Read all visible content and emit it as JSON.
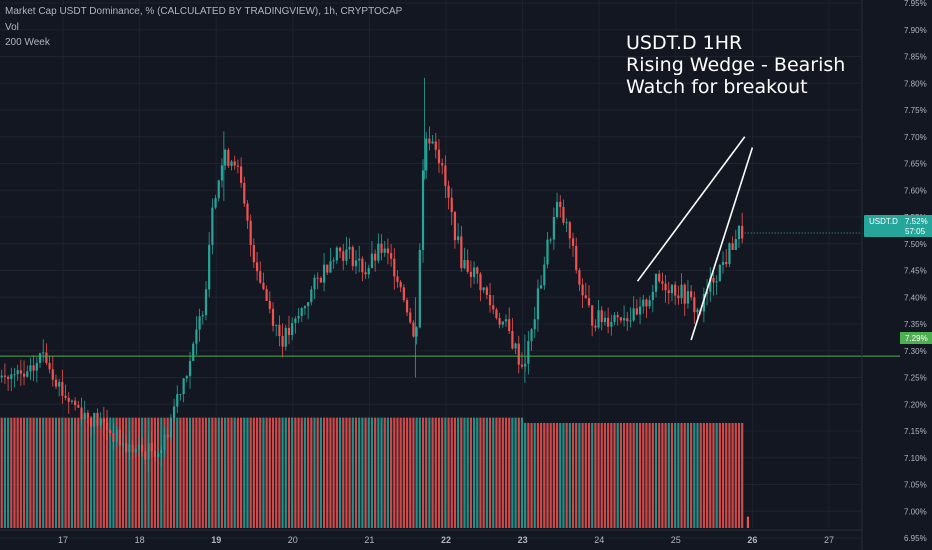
{
  "header": {
    "title": "Market Cap USDT Dominance, % (CALCULATED BY TRADINGVIEW), 1h, CRYPTOCAP",
    "indicator_vol": "Vol",
    "indicator_ma": "200 Week"
  },
  "annotation": {
    "line1": "USDT.D 1HR",
    "line2": "Rising Wedge - Bearish",
    "line3": "Watch for breakout"
  },
  "price_label": {
    "symbol": "USDT.D",
    "value": "7.52%",
    "countdown": "57:05"
  },
  "level_label": {
    "value": "7.29%"
  },
  "colors": {
    "background": "#131722",
    "up": "#26a69a",
    "down": "#ef5350",
    "level_line": "#4caf50",
    "wedge": "#ffffff",
    "grid": "#1e222d"
  },
  "chart_data": {
    "type": "candlestick",
    "symbol": "USDT.D",
    "interval": "1h",
    "y_ticks": [
      "7.95%",
      "7.90%",
      "7.85%",
      "7.80%",
      "7.75%",
      "7.70%",
      "7.65%",
      "7.60%",
      "7.55%",
      "7.50%",
      "7.45%",
      "7.40%",
      "7.35%",
      "7.30%",
      "7.25%",
      "7.20%",
      "7.15%",
      "7.10%",
      "7.05%",
      "7.00%",
      "6.95%"
    ],
    "x_ticks": [
      "17",
      "18",
      "19",
      "20",
      "21",
      "22",
      "23",
      "24",
      "25",
      "26",
      "27"
    ],
    "x_ticks_bold": [
      "19",
      "22",
      "23",
      "26"
    ],
    "ylim": [
      6.93,
      7.96
    ],
    "horizontal_level": 7.29,
    "last_price": 7.52,
    "wedge_lines": [
      {
        "from": [
          "24.5",
          7.43
        ],
        "to": [
          "25.9",
          7.7
        ]
      },
      {
        "from": [
          "25.2",
          7.32
        ],
        "to": [
          "26.0",
          7.68
        ]
      }
    ],
    "price_path": [
      [
        16.55,
        7.25
      ],
      [
        16.75,
        7.3
      ],
      [
        17.0,
        7.22
      ],
      [
        17.3,
        7.18
      ],
      [
        17.55,
        7.16
      ],
      [
        17.8,
        7.12
      ],
      [
        18.05,
        7.11
      ],
      [
        18.3,
        7.12
      ],
      [
        18.5,
        7.22
      ],
      [
        18.7,
        7.3
      ],
      [
        18.85,
        7.4
      ],
      [
        18.95,
        7.58
      ],
      [
        19.1,
        7.66
      ],
      [
        19.25,
        7.66
      ],
      [
        19.45,
        7.5
      ],
      [
        19.65,
        7.4
      ],
      [
        19.85,
        7.32
      ],
      [
        20.0,
        7.34
      ],
      [
        20.2,
        7.4
      ],
      [
        20.4,
        7.45
      ],
      [
        20.55,
        7.49
      ],
      [
        20.75,
        7.48
      ],
      [
        20.95,
        7.45
      ],
      [
        21.15,
        7.49
      ],
      [
        21.35,
        7.45
      ],
      [
        21.5,
        7.38
      ],
      [
        21.6,
        7.3
      ],
      [
        21.72,
        7.7
      ],
      [
        21.85,
        7.7
      ],
      [
        22.0,
        7.6
      ],
      [
        22.2,
        7.47
      ],
      [
        22.4,
        7.44
      ],
      [
        22.6,
        7.38
      ],
      [
        22.8,
        7.34
      ],
      [
        23.0,
        7.27
      ],
      [
        23.1,
        7.32
      ],
      [
        23.3,
        7.48
      ],
      [
        23.45,
        7.57
      ],
      [
        23.6,
        7.52
      ],
      [
        23.75,
        7.42
      ],
      [
        23.9,
        7.36
      ],
      [
        24.1,
        7.36
      ],
      [
        24.3,
        7.37
      ],
      [
        24.5,
        7.36
      ],
      [
        24.75,
        7.43
      ],
      [
        24.95,
        7.42
      ],
      [
        25.15,
        7.4
      ],
      [
        25.3,
        7.37
      ],
      [
        25.5,
        7.44
      ],
      [
        25.65,
        7.47
      ],
      [
        25.8,
        7.52
      ]
    ],
    "volume": {
      "level_left": 7.175,
      "level_right": 7.165,
      "switch_at": 23.0,
      "end_at": 25.9
    }
  }
}
